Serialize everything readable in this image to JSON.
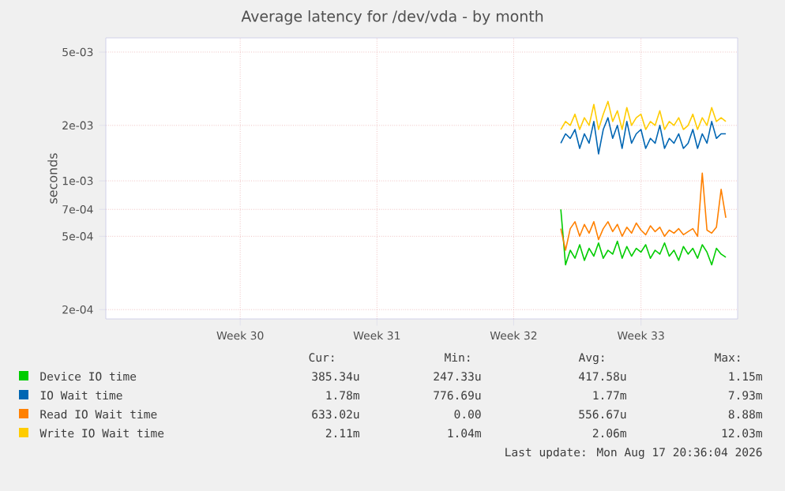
{
  "chart_data": {
    "type": "line",
    "title": "Average latency for /dev/vda - by month",
    "ylabel": "seconds",
    "categories": [
      null,
      null,
      null,
      null,
      null,
      null,
      null,
      null,
      null,
      null,
      null,
      null,
      null,
      null,
      null,
      null,
      null,
      null,
      null,
      null,
      null,
      null,
      null,
      null,
      null,
      null,
      null,
      null,
      "Week 30",
      null,
      null,
      null,
      null,
      null,
      null,
      null,
      null,
      null,
      null,
      null,
      null,
      null,
      null,
      null,
      null,
      null,
      null,
      null,
      null,
      null,
      null,
      null,
      null,
      null,
      null,
      null,
      null,
      "Week 31",
      null,
      null,
      null,
      null,
      null,
      null,
      null,
      null,
      null,
      null,
      null,
      null,
      null,
      null,
      null,
      null,
      null,
      null,
      null,
      null,
      null,
      null,
      null,
      null,
      null,
      null,
      null,
      null,
      "Week 32",
      null,
      null,
      null,
      null,
      null,
      null,
      null,
      null,
      null,
      null,
      null,
      null,
      null,
      null,
      null,
      null,
      null,
      null,
      null,
      null,
      null,
      null,
      null,
      null,
      null,
      null,
      "Week 33",
      null,
      null,
      null,
      null,
      null,
      null,
      null,
      null,
      null,
      null,
      null,
      null,
      null,
      null,
      null,
      null,
      null,
      null,
      null,
      null
    ],
    "series": [
      {
        "name": "Device IO time",
        "color": "#00cc00",
        "values": [
          null,
          null,
          null,
          null,
          null,
          null,
          null,
          null,
          null,
          null,
          null,
          null,
          null,
          null,
          null,
          null,
          null,
          null,
          null,
          null,
          null,
          null,
          null,
          null,
          null,
          null,
          null,
          null,
          null,
          null,
          null,
          null,
          null,
          null,
          null,
          null,
          null,
          null,
          null,
          null,
          null,
          null,
          null,
          null,
          null,
          null,
          null,
          null,
          null,
          null,
          null,
          null,
          null,
          null,
          null,
          null,
          null,
          null,
          null,
          null,
          null,
          null,
          null,
          null,
          null,
          null,
          null,
          null,
          null,
          null,
          null,
          null,
          null,
          null,
          null,
          null,
          null,
          null,
          null,
          null,
          null,
          null,
          null,
          null,
          null,
          null,
          null,
          null,
          null,
          null,
          null,
          null,
          null,
          null,
          null,
          null,
          0.0007,
          0.00035,
          0.00042,
          0.00038,
          0.00045,
          0.00037,
          0.00043,
          0.00039,
          0.00046,
          0.00038,
          0.00042,
          0.0004,
          0.00047,
          0.00038,
          0.00044,
          0.00039,
          0.00043,
          0.00041,
          0.00045,
          0.00038,
          0.00042,
          0.0004,
          0.00046,
          0.00039,
          0.00042,
          0.00037,
          0.00044,
          0.0004,
          0.00043,
          0.00038,
          0.00045,
          0.00041,
          0.00035,
          0.00043,
          0.0004,
          0.000385,
          null,
          null
        ]
      },
      {
        "name": "IO Wait time",
        "color": "#0066b3",
        "values": [
          null,
          null,
          null,
          null,
          null,
          null,
          null,
          null,
          null,
          null,
          null,
          null,
          null,
          null,
          null,
          null,
          null,
          null,
          null,
          null,
          null,
          null,
          null,
          null,
          null,
          null,
          null,
          null,
          null,
          null,
          null,
          null,
          null,
          null,
          null,
          null,
          null,
          null,
          null,
          null,
          null,
          null,
          null,
          null,
          null,
          null,
          null,
          null,
          null,
          null,
          null,
          null,
          null,
          null,
          null,
          null,
          null,
          null,
          null,
          null,
          null,
          null,
          null,
          null,
          null,
          null,
          null,
          null,
          null,
          null,
          null,
          null,
          null,
          null,
          null,
          null,
          null,
          null,
          null,
          null,
          null,
          null,
          null,
          null,
          null,
          null,
          null,
          null,
          null,
          null,
          null,
          null,
          null,
          null,
          null,
          null,
          0.0016,
          0.0018,
          0.0017,
          0.0019,
          0.0015,
          0.0018,
          0.0016,
          0.0021,
          0.0014,
          0.0019,
          0.0022,
          0.0017,
          0.002,
          0.0015,
          0.0021,
          0.0016,
          0.0018,
          0.0019,
          0.0015,
          0.0017,
          0.0016,
          0.002,
          0.0015,
          0.0017,
          0.0016,
          0.0018,
          0.0015,
          0.0016,
          0.0019,
          0.0015,
          0.0018,
          0.0016,
          0.0021,
          0.0017,
          0.0018,
          0.0018,
          null,
          null
        ]
      },
      {
        "name": "Read IO Wait time",
        "color": "#ff8000",
        "values": [
          null,
          null,
          null,
          null,
          null,
          null,
          null,
          null,
          null,
          null,
          null,
          null,
          null,
          null,
          null,
          null,
          null,
          null,
          null,
          null,
          null,
          null,
          null,
          null,
          null,
          null,
          null,
          null,
          null,
          null,
          null,
          null,
          null,
          null,
          null,
          null,
          null,
          null,
          null,
          null,
          null,
          null,
          null,
          null,
          null,
          null,
          null,
          null,
          null,
          null,
          null,
          null,
          null,
          null,
          null,
          null,
          null,
          null,
          null,
          null,
          null,
          null,
          null,
          null,
          null,
          null,
          null,
          null,
          null,
          null,
          null,
          null,
          null,
          null,
          null,
          null,
          null,
          null,
          null,
          null,
          null,
          null,
          null,
          null,
          null,
          null,
          null,
          null,
          null,
          null,
          null,
          null,
          null,
          null,
          null,
          null,
          0.00055,
          0.00042,
          0.00055,
          0.0006,
          0.0005,
          0.00058,
          0.00052,
          0.0006,
          0.00048,
          0.00055,
          0.0006,
          0.00053,
          0.00058,
          0.0005,
          0.00056,
          0.00052,
          0.00059,
          0.00054,
          0.00051,
          0.00057,
          0.00053,
          0.00056,
          0.0005,
          0.00054,
          0.00052,
          0.00055,
          0.00051,
          0.00053,
          0.00055,
          0.0005,
          0.0011,
          0.00054,
          0.00052,
          0.00056,
          0.0009,
          0.00063,
          null,
          null
        ]
      },
      {
        "name": "Write IO Wait time",
        "color": "#ffcc00",
        "values": [
          null,
          null,
          null,
          null,
          null,
          null,
          null,
          null,
          null,
          null,
          null,
          null,
          null,
          null,
          null,
          null,
          null,
          null,
          null,
          null,
          null,
          null,
          null,
          null,
          null,
          null,
          null,
          null,
          null,
          null,
          null,
          null,
          null,
          null,
          null,
          null,
          null,
          null,
          null,
          null,
          null,
          null,
          null,
          null,
          null,
          null,
          null,
          null,
          null,
          null,
          null,
          null,
          null,
          null,
          null,
          null,
          null,
          null,
          null,
          null,
          null,
          null,
          null,
          null,
          null,
          null,
          null,
          null,
          null,
          null,
          null,
          null,
          null,
          null,
          null,
          null,
          null,
          null,
          null,
          null,
          null,
          null,
          null,
          null,
          null,
          null,
          null,
          null,
          null,
          null,
          null,
          null,
          null,
          null,
          null,
          null,
          0.0019,
          0.0021,
          0.002,
          0.0023,
          0.0019,
          0.0022,
          0.002,
          0.0026,
          0.0019,
          0.0023,
          0.0027,
          0.0021,
          0.0024,
          0.0019,
          0.0025,
          0.002,
          0.0022,
          0.0023,
          0.0019,
          0.0021,
          0.002,
          0.0024,
          0.0019,
          0.0021,
          0.002,
          0.0022,
          0.0019,
          0.002,
          0.0023,
          0.0019,
          0.0022,
          0.002,
          0.0025,
          0.0021,
          0.0022,
          0.0021,
          null,
          null
        ]
      }
    ],
    "ylim": [
      0.000178,
      0.00597
    ],
    "log": "y",
    "yticks": [
      {
        "value": 0.0002,
        "label": "2e-04"
      },
      {
        "value": 0.0005,
        "label": "5e-04"
      },
      {
        "value": 0.0007,
        "label": "7e-04"
      },
      {
        "value": 0.001,
        "label": "1e-03"
      },
      {
        "value": 0.002,
        "label": "2e-03"
      },
      {
        "value": 0.005,
        "label": "5e-03"
      }
    ],
    "grid": true,
    "legend": "bottom",
    "line_style": "solid",
    "marker": "none",
    "annotations": [
      "Cur:",
      "Min:",
      "Avg:",
      "Max:",
      "385.34u",
      "247.33u",
      "417.58u",
      "1.15m",
      "1.78m",
      "776.69u",
      "1.77m",
      "7.93m",
      "633.02u",
      "0.00",
      "556.67u",
      "8.88m",
      "2.11m",
      "1.04m",
      "2.06m",
      "12.03m",
      "Last update: Mon Aug 17 20:36:04 2026"
    ]
  }
}
